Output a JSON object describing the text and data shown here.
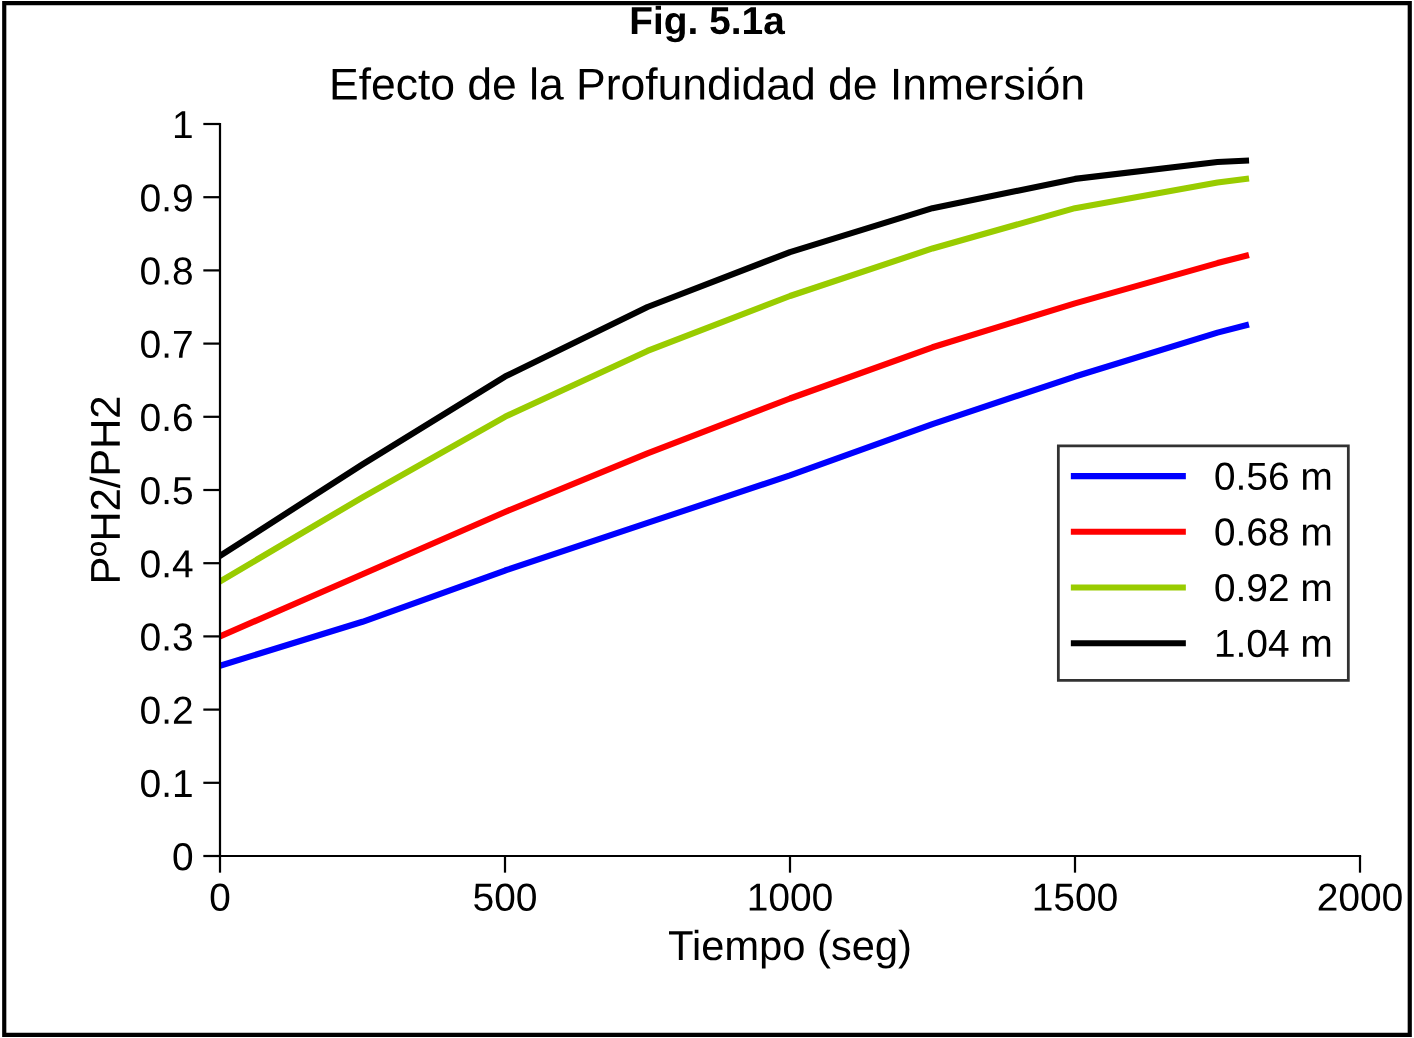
{
  "chart_data": {
    "type": "line",
    "title": "Efecto de la Profundidad de Inmersión",
    "xlabel": "Tiempo (seg)",
    "ylabel": "PºH2/PH2",
    "annotations": [
      "Fig. 5.1a"
    ],
    "x": [
      0,
      250,
      500,
      750,
      1000,
      1250,
      1500,
      1750,
      1800
    ],
    "series": [
      {
        "name": "0.56 m",
        "color": "#0000ff",
        "values": [
          0.26,
          0.32,
          0.39,
          0.455,
          0.52,
          0.59,
          0.655,
          0.715,
          0.725
        ]
      },
      {
        "name": "0.68 m",
        "color": "#ff0000",
        "values": [
          0.3,
          0.385,
          0.47,
          0.55,
          0.625,
          0.695,
          0.755,
          0.81,
          0.82
        ]
      },
      {
        "name": "0.92 m",
        "color": "#99cc00",
        "values": [
          0.375,
          0.49,
          0.6,
          0.69,
          0.765,
          0.83,
          0.885,
          0.92,
          0.925
        ]
      },
      {
        "name": "1.04 m",
        "color": "#000000",
        "values": [
          0.41,
          0.535,
          0.655,
          0.75,
          0.825,
          0.885,
          0.925,
          0.948,
          0.95
        ]
      }
    ],
    "xlim": [
      0,
      2000
    ],
    "xticks": [
      0,
      500,
      1000,
      1500,
      2000
    ],
    "ylim": [
      0,
      1
    ],
    "yticks": [
      0,
      0.1,
      0.2,
      0.3,
      0.4,
      0.5,
      0.6,
      0.7,
      0.8,
      0.9,
      1
    ],
    "grid": false,
    "legend": "right",
    "marker": "none",
    "line_style": "solid"
  }
}
